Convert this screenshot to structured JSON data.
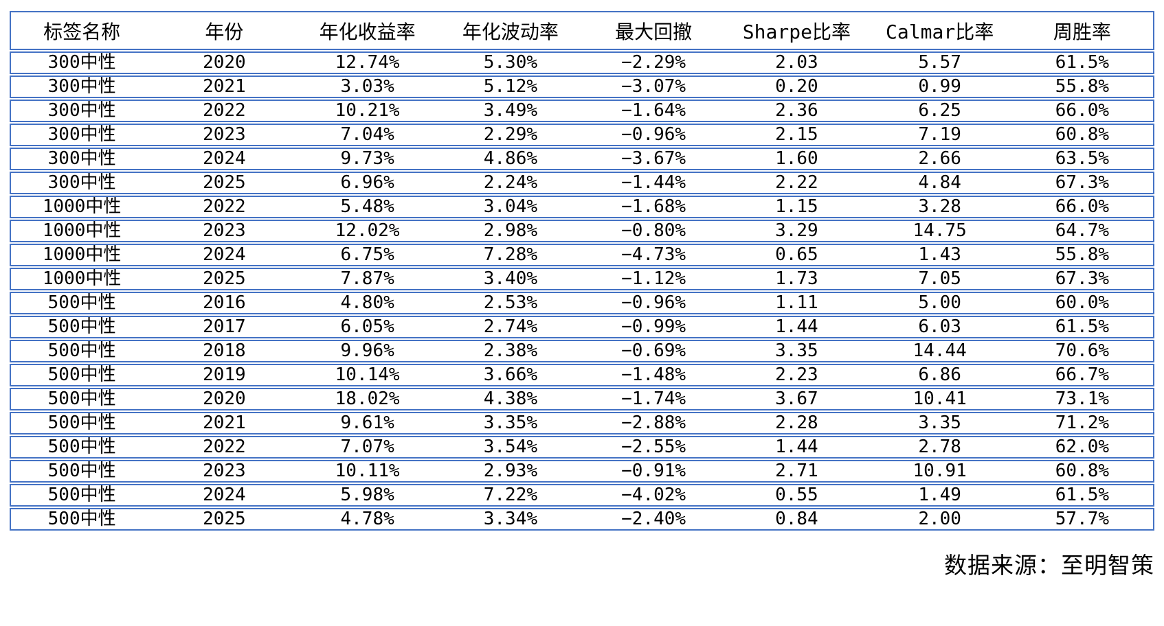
{
  "chart_data": {
    "type": "table",
    "title": "",
    "columns": [
      "标签名称",
      "年份",
      "年化收益率",
      "年化波动率",
      "最大回撤",
      "Sharpe比率",
      "Calmar比率",
      "周胜率"
    ],
    "rows": [
      [
        "300中性",
        "2020",
        "12.74%",
        "5.30%",
        "−2.29%",
        "2.03",
        "5.57",
        "61.5%"
      ],
      [
        "300中性",
        "2021",
        "3.03%",
        "5.12%",
        "−3.07%",
        "0.20",
        "0.99",
        "55.8%"
      ],
      [
        "300中性",
        "2022",
        "10.21%",
        "3.49%",
        "−1.64%",
        "2.36",
        "6.25",
        "66.0%"
      ],
      [
        "300中性",
        "2023",
        "7.04%",
        "2.29%",
        "−0.96%",
        "2.15",
        "7.19",
        "60.8%"
      ],
      [
        "300中性",
        "2024",
        "9.73%",
        "4.86%",
        "−3.67%",
        "1.60",
        "2.66",
        "63.5%"
      ],
      [
        "300中性",
        "2025",
        "6.96%",
        "2.24%",
        "−1.44%",
        "2.22",
        "4.84",
        "67.3%"
      ],
      [
        "1000中性",
        "2022",
        "5.48%",
        "3.04%",
        "−1.68%",
        "1.15",
        "3.28",
        "66.0%"
      ],
      [
        "1000中性",
        "2023",
        "12.02%",
        "2.98%",
        "−0.80%",
        "3.29",
        "14.75",
        "64.7%"
      ],
      [
        "1000中性",
        "2024",
        "6.75%",
        "7.28%",
        "−4.73%",
        "0.65",
        "1.43",
        "55.8%"
      ],
      [
        "1000中性",
        "2025",
        "7.87%",
        "3.40%",
        "−1.12%",
        "1.73",
        "7.05",
        "67.3%"
      ],
      [
        "500中性",
        "2016",
        "4.80%",
        "2.53%",
        "−0.96%",
        "1.11",
        "5.00",
        "60.0%"
      ],
      [
        "500中性",
        "2017",
        "6.05%",
        "2.74%",
        "−0.99%",
        "1.44",
        "6.03",
        "61.5%"
      ],
      [
        "500中性",
        "2018",
        "9.96%",
        "2.38%",
        "−0.69%",
        "3.35",
        "14.44",
        "70.6%"
      ],
      [
        "500中性",
        "2019",
        "10.14%",
        "3.66%",
        "−1.48%",
        "2.23",
        "6.86",
        "66.7%"
      ],
      [
        "500中性",
        "2020",
        "18.02%",
        "4.38%",
        "−1.74%",
        "3.67",
        "10.41",
        "73.1%"
      ],
      [
        "500中性",
        "2021",
        "9.61%",
        "3.35%",
        "−2.88%",
        "2.28",
        "3.35",
        "71.2%"
      ],
      [
        "500中性",
        "2022",
        "7.07%",
        "3.54%",
        "−2.55%",
        "1.44",
        "2.78",
        "62.0%"
      ],
      [
        "500中性",
        "2023",
        "10.11%",
        "2.93%",
        "−0.91%",
        "2.71",
        "10.91",
        "60.8%"
      ],
      [
        "500中性",
        "2024",
        "5.98%",
        "7.22%",
        "−4.02%",
        "0.55",
        "1.49",
        "61.5%"
      ],
      [
        "500中性",
        "2025",
        "4.78%",
        "3.34%",
        "−2.40%",
        "0.84",
        "2.00",
        "57.7%"
      ]
    ],
    "layout": {
      "grid": "horizontal row borders only",
      "header_position": "top"
    }
  },
  "footer": {
    "source": "数据来源：至明智策"
  },
  "colors": {
    "border": "#4472C4",
    "text": "#000000",
    "background": "#ffffff"
  }
}
